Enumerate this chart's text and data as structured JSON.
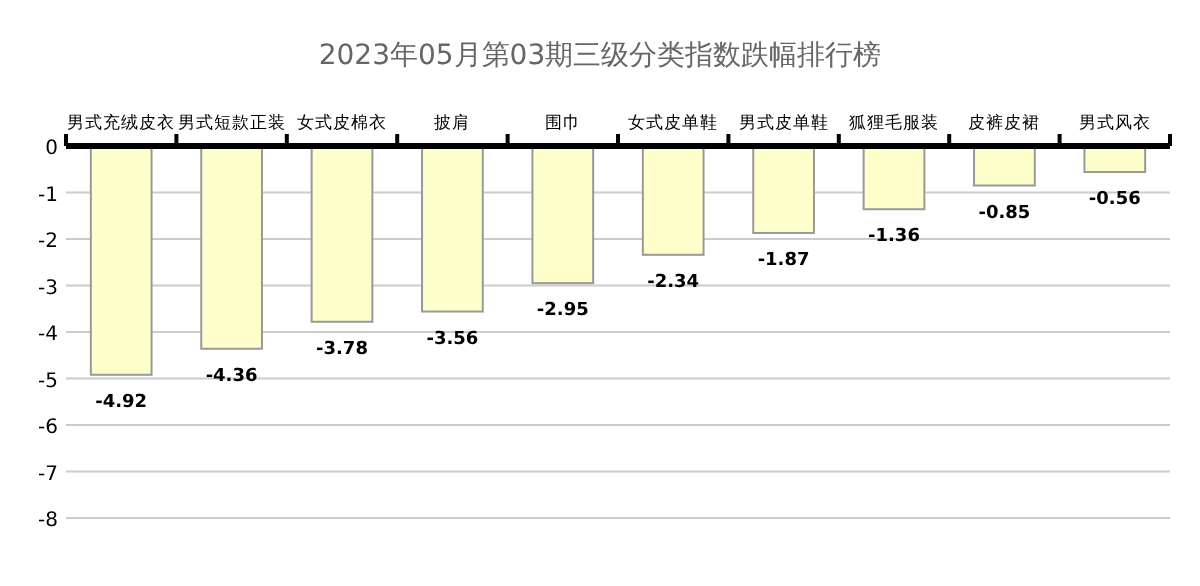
{
  "chart_data": {
    "type": "bar",
    "title": "2023年05月第03期三级分类指数跌幅排行榜",
    "categories": [
      "男式充绒皮衣",
      "男式短款正装",
      "女式皮棉衣",
      "披肩",
      "围巾",
      "女式皮单鞋",
      "男式皮单鞋",
      "狐狸毛服装",
      "皮裤皮裙",
      "男式风衣"
    ],
    "values": [
      -4.92,
      -4.36,
      -3.78,
      -3.56,
      -2.95,
      -2.34,
      -1.87,
      -1.36,
      -0.85,
      -0.56
    ],
    "color": "#ffffcc",
    "ylim": [
      -8,
      0
    ],
    "yticks": [
      0,
      -1,
      -2,
      -3,
      -4,
      -5,
      -6,
      -7,
      -8
    ],
    "grid": "y",
    "data_labels": true
  }
}
